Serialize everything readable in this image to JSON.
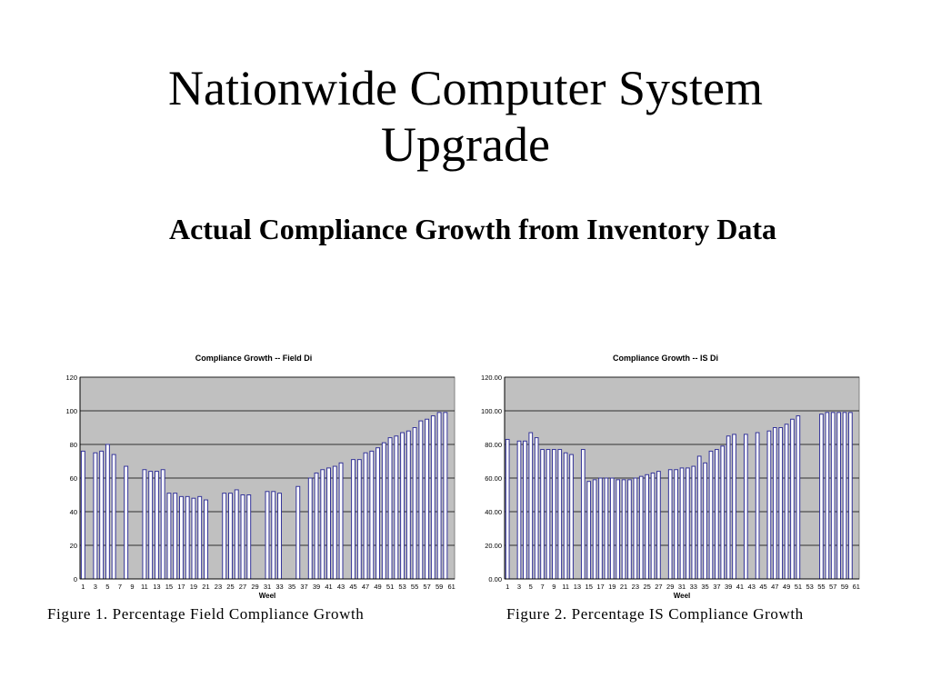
{
  "slide": {
    "title_line1": "Nationwide Computer System",
    "title_line2": "Upgrade",
    "subtitle": "Actual Compliance Growth from Inventory Data"
  },
  "captions": {
    "figure1": "Figure 1.  Percentage Field Compliance Growth",
    "figure2": "Figure 2. Percentage IS Compliance Growth"
  },
  "colors": {
    "plot_bg": "#c0c0c0",
    "bar_fill": "#ffffff",
    "bar_stroke": "#333399",
    "grid": "#000000"
  },
  "chart_data": [
    {
      "type": "bar",
      "title": "Compliance Growth -- Field Di",
      "xlabel": "Weel",
      "ylabel": "",
      "ylim": [
        0,
        120
      ],
      "yticks": [
        "0",
        "20",
        "40",
        "60",
        "80",
        "100",
        "120"
      ],
      "xticks": [
        "1",
        "3",
        "5",
        "7",
        "9",
        "11",
        "13",
        "15",
        "17",
        "19",
        "21",
        "23",
        "25",
        "27",
        "29",
        "31",
        "33",
        "35",
        "37",
        "39",
        "41",
        "43",
        "45",
        "47",
        "49",
        "51",
        "53",
        "55",
        "57",
        "59",
        "61"
      ],
      "grid": true,
      "x": [
        1,
        2,
        3,
        4,
        5,
        6,
        7,
        8,
        9,
        10,
        11,
        12,
        13,
        14,
        15,
        16,
        17,
        18,
        19,
        20,
        21,
        22,
        23,
        24,
        25,
        26,
        27,
        28,
        29,
        30,
        31,
        32,
        33,
        34,
        35,
        36,
        37,
        38,
        39,
        40,
        41,
        42,
        43,
        44,
        45,
        46,
        47,
        48,
        49,
        50,
        51,
        52,
        53,
        54,
        55,
        56,
        57,
        58,
        59,
        60,
        61
      ],
      "values": [
        76,
        null,
        75,
        76,
        80,
        74,
        null,
        67,
        null,
        null,
        65,
        64,
        64,
        65,
        51,
        51,
        49,
        49,
        48,
        49,
        47,
        null,
        null,
        51,
        51,
        53,
        50,
        50,
        null,
        null,
        52,
        52,
        51,
        null,
        null,
        55,
        null,
        60,
        63,
        65,
        66,
        67,
        69,
        null,
        71,
        71,
        75,
        76,
        78,
        81,
        84,
        85,
        87,
        88,
        90,
        94,
        95,
        97,
        99,
        99,
        null
      ]
    },
    {
      "type": "bar",
      "title": "Compliance Growth -- IS Di",
      "xlabel": "Weel",
      "ylabel": "",
      "ylim": [
        0,
        120
      ],
      "yticks": [
        "0.00",
        "20.00",
        "40.00",
        "60.00",
        "80.00",
        "100.00",
        "120.00"
      ],
      "xticks": [
        "1",
        "3",
        "5",
        "7",
        "9",
        "11",
        "13",
        "15",
        "17",
        "19",
        "21",
        "23",
        "25",
        "27",
        "29",
        "31",
        "33",
        "35",
        "37",
        "39",
        "41",
        "43",
        "45",
        "47",
        "49",
        "51",
        "53",
        "55",
        "57",
        "59",
        "61"
      ],
      "grid": true,
      "x": [
        1,
        2,
        3,
        4,
        5,
        6,
        7,
        8,
        9,
        10,
        11,
        12,
        13,
        14,
        15,
        16,
        17,
        18,
        19,
        20,
        21,
        22,
        23,
        24,
        25,
        26,
        27,
        28,
        29,
        30,
        31,
        32,
        33,
        34,
        35,
        36,
        37,
        38,
        39,
        40,
        41,
        42,
        43,
        44,
        45,
        46,
        47,
        48,
        49,
        50,
        51,
        52,
        53,
        54,
        55,
        56,
        57,
        58,
        59,
        60,
        61
      ],
      "values": [
        83,
        null,
        82,
        82,
        87,
        84,
        77,
        77,
        77,
        77,
        75,
        74,
        null,
        77,
        58,
        59,
        60,
        60,
        60,
        59,
        59,
        59,
        60,
        61,
        62,
        63,
        64,
        null,
        65,
        65,
        66,
        66,
        67,
        73,
        69,
        76,
        77,
        79,
        85,
        86,
        null,
        86,
        null,
        87,
        null,
        88,
        90,
        90,
        92,
        95,
        97,
        null,
        null,
        null,
        98,
        99,
        99,
        99,
        99,
        99,
        null
      ]
    }
  ]
}
